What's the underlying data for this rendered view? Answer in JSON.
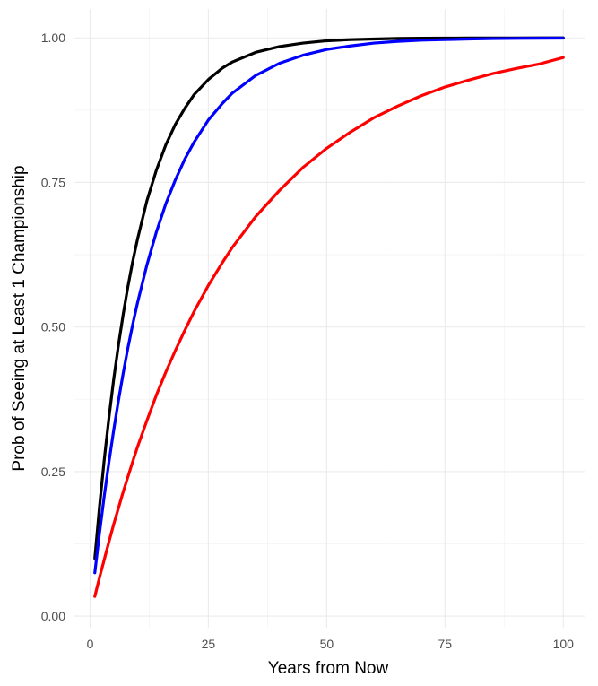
{
  "chart_data": {
    "type": "line",
    "xlabel": "Years from Now",
    "ylabel": "Prob of Seeing at Least 1 Championship",
    "xlim": [
      -3.5,
      104.5
    ],
    "ylim": [
      -0.02,
      1.05
    ],
    "x_ticks": [
      0,
      25,
      50,
      75,
      100
    ],
    "x_tick_labels": [
      "0",
      "25",
      "50",
      "75",
      "100"
    ],
    "y_ticks": [
      0,
      0.25,
      0.5,
      0.75,
      1.0
    ],
    "y_tick_labels": [
      "0.00",
      "0.25",
      "0.50",
      "0.75",
      "1.00"
    ],
    "x_minor": [
      12.5,
      37.5,
      62.5,
      87.5
    ],
    "y_minor": [
      0.125,
      0.375,
      0.625,
      0.875
    ],
    "grid": true,
    "x": [
      1,
      2,
      3,
      4,
      5,
      6,
      7,
      8,
      9,
      10,
      12,
      14,
      16,
      18,
      20,
      22,
      25,
      28,
      30,
      35,
      40,
      45,
      50,
      55,
      60,
      65,
      70,
      75,
      80,
      85,
      90,
      95,
      100
    ],
    "series": [
      {
        "color": "#000000",
        "values": [
          0.1,
          0.19,
          0.271,
          0.344,
          0.41,
          0.469,
          0.522,
          0.57,
          0.613,
          0.651,
          0.718,
          0.771,
          0.815,
          0.85,
          0.878,
          0.902,
          0.928,
          0.948,
          0.958,
          0.975,
          0.985,
          0.991,
          0.995,
          0.997,
          0.998,
          0.999,
          0.9994,
          0.9996,
          0.9998,
          0.9999,
          0.9999,
          1.0,
          1.0
        ]
      },
      {
        "color": "#0000ff",
        "values": [
          0.075,
          0.144,
          0.208,
          0.267,
          0.322,
          0.373,
          0.42,
          0.464,
          0.504,
          0.541,
          0.607,
          0.664,
          0.713,
          0.754,
          0.79,
          0.82,
          0.858,
          0.887,
          0.904,
          0.935,
          0.956,
          0.97,
          0.98,
          0.986,
          0.991,
          0.994,
          0.996,
          0.997,
          0.998,
          0.9987,
          0.9991,
          0.9994,
          0.9996
        ]
      },
      {
        "color": "#ff0000",
        "values": [
          0.034,
          0.067,
          0.098,
          0.129,
          0.159,
          0.187,
          0.215,
          0.241,
          0.267,
          0.292,
          0.338,
          0.382,
          0.422,
          0.459,
          0.494,
          0.527,
          0.572,
          0.612,
          0.637,
          0.691,
          0.736,
          0.776,
          0.809,
          0.837,
          0.862,
          0.882,
          0.9,
          0.915,
          0.927,
          0.938,
          0.947,
          0.955,
          0.966
        ]
      }
    ]
  }
}
